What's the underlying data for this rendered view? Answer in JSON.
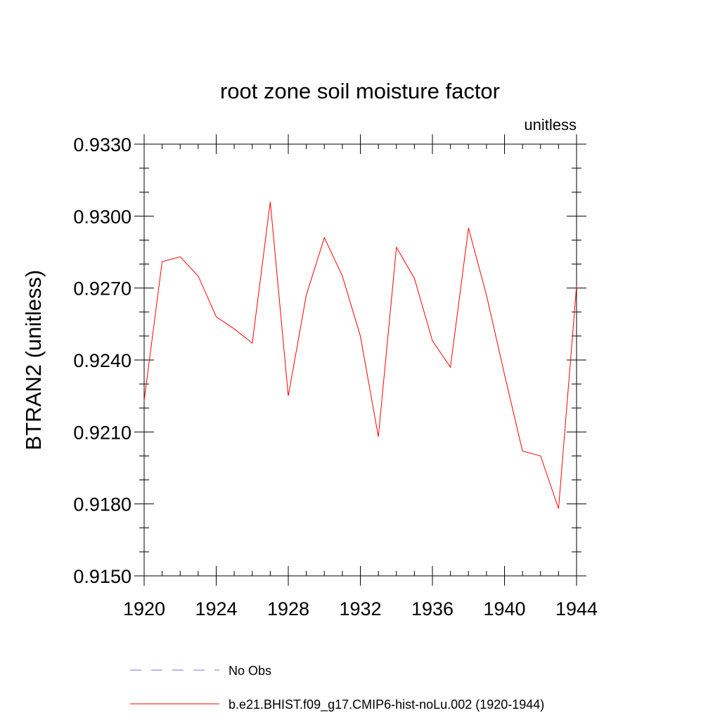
{
  "chart_data": {
    "type": "line",
    "title": "root zone soil moisture factor",
    "units_label": "unitless",
    "ylabel": "BTRAN2  (unitless)",
    "xlabel": "",
    "xlim": [
      1920,
      1944
    ],
    "ylim": [
      0.915,
      0.933
    ],
    "x_ticks": [
      1920,
      1924,
      1928,
      1932,
      1936,
      1940,
      1944
    ],
    "y_ticks": [
      0.915,
      0.918,
      0.921,
      0.924,
      0.927,
      0.93,
      0.933
    ],
    "x_tick_labels": [
      "1920",
      "1924",
      "1928",
      "1932",
      "1936",
      "1940",
      "1944"
    ],
    "y_tick_labels": [
      "0.9150",
      "0.9180",
      "0.9210",
      "0.9240",
      "0.9270",
      "0.9300",
      "0.9330"
    ],
    "grid": false,
    "legend_position": "bottom",
    "series": [
      {
        "name": "b.e21.BHIST.f09_g17.CMIP6-hist-noLu.002 (1920-1944)",
        "color": "#ff0000",
        "style": "solid",
        "x": [
          1920,
          1921,
          1922,
          1923,
          1924,
          1925,
          1926,
          1927,
          1928,
          1929,
          1930,
          1931,
          1932,
          1933,
          1934,
          1935,
          1936,
          1937,
          1938,
          1939,
          1940,
          1941,
          1942,
          1943,
          1944
        ],
        "y": [
          0.9223,
          0.9281,
          0.9283,
          0.9275,
          0.9258,
          0.9253,
          0.9247,
          0.9306,
          0.9225,
          0.9267,
          0.9291,
          0.9275,
          0.925,
          0.9208,
          0.9287,
          0.9274,
          0.9248,
          0.9237,
          0.9295,
          0.9267,
          0.9234,
          0.9202,
          0.92,
          0.9178,
          0.9271
        ]
      },
      {
        "name": "No Obs",
        "color": "#7777cc",
        "style": "dashed",
        "x": [],
        "y": []
      }
    ]
  }
}
